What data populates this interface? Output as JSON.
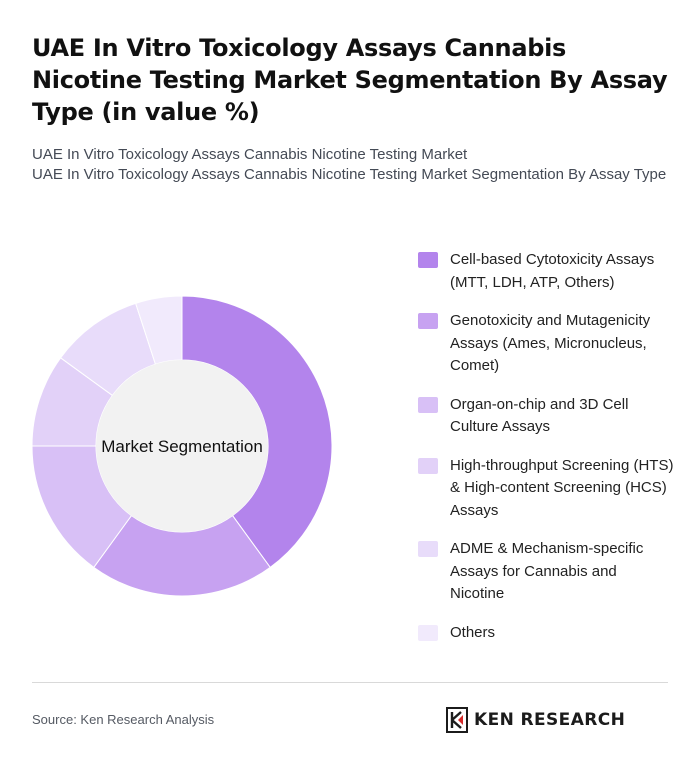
{
  "title": "UAE In Vitro Toxicology Assays Cannabis Nicotine Testing Market Segmentation By Assay Type (in value %)",
  "subtitle_line1": "UAE In Vitro Toxicology Assays Cannabis Nicotine Testing Market",
  "subtitle_line2": "UAE In Vitro Toxicology Assays Cannabis Nicotine Testing Market Segmentation By Assay Type",
  "chart_data": {
    "type": "pie",
    "donut": true,
    "center_label": "Market Segmentation",
    "categories": [
      "Cell-based Cytotoxicity Assays (MTT, LDH, ATP, Others)",
      "Genotoxicity and Mutagenicity Assays (Ames, Micronucleus, Comet)",
      "Organ-on-chip and 3D Cell Culture Assays",
      "High-throughput Screening (HTS) & High-content Screening (HCS) Assays",
      "ADME & Mechanism-specific Assays for Cannabis and Nicotine",
      "Others"
    ],
    "values": [
      40,
      20,
      15,
      10,
      10,
      5
    ],
    "colors": [
      "#b384ec",
      "#c7a2f1",
      "#d8c0f6",
      "#e2d1f8",
      "#e8dcfa",
      "#f1eafc"
    ],
    "legend_position": "right"
  },
  "source": "Source: Ken Research Analysis",
  "logo_text": "KEN RESEARCH"
}
